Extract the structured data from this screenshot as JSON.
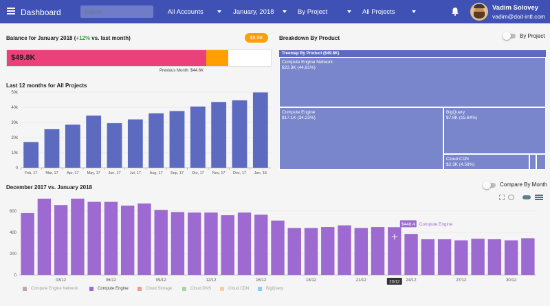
{
  "header": {
    "title": "Dashboard",
    "search_placeholder": "Search",
    "filters": [
      {
        "label": "All Accounts"
      },
      {
        "label": "January, 2018"
      },
      {
        "label": "By Project"
      },
      {
        "label": "All Projects"
      }
    ],
    "user": {
      "name": "Vadim Solovey",
      "email": "vadim@doit-intl.com"
    }
  },
  "balance": {
    "title_prefix": "Balance for January 2018 (",
    "change": "+12%",
    "title_suffix": " vs. last month)",
    "badge": "$5.6K",
    "value": "$49.8K",
    "previous": "Previous Month: $44.6K",
    "current_fraction": 0.754,
    "extra_fraction": 0.085
  },
  "breakdown": {
    "title": "Breakdown By Product",
    "toggle_label": "By Project",
    "treemap_title": "Treemap By Product ($49.8K)",
    "cells": [
      {
        "name": "Compute Engine Network",
        "value": "$22.3K (44.81%)"
      },
      {
        "name": "Compute Engine",
        "value": "$17.1K (34.23%)"
      },
      {
        "name": "BigQuery",
        "value": "$7.8K (15.64%)"
      },
      {
        "name": "Cloud CDN",
        "value": "$2.3K (4.58%)"
      }
    ]
  },
  "chart_data": [
    {
      "type": "bar",
      "title": "Last 12 months for All Projects",
      "categories": [
        "Feb, 17",
        "Mar, 17",
        "Apr, 17",
        "May, 17",
        "Jun, 17",
        "Jul, 17",
        "Aug, 17",
        "Sep, 17",
        "Oct, 17",
        "Nov, 17",
        "Dec, 17",
        "Jan, 18"
      ],
      "values": [
        17,
        25.5,
        28.5,
        34.5,
        29.5,
        32,
        36,
        37.5,
        40.5,
        43.5,
        44.6,
        49.8
      ],
      "y_ticks": [
        "0",
        "10k",
        "20k",
        "30k",
        "40k",
        "50k"
      ],
      "ylim": [
        0,
        50
      ],
      "color": "#5c6bc0",
      "grid": true
    },
    {
      "type": "bar",
      "title": "December 2017 vs. January 2018",
      "toggle_label": "Compare By Month",
      "values": [
        580,
        715,
        655,
        715,
        685,
        685,
        650,
        670,
        610,
        590,
        585,
        585,
        560,
        585,
        565,
        510,
        440,
        440,
        450,
        465,
        440,
        450,
        448.4,
        385,
        335,
        335,
        325,
        340,
        335,
        325,
        345
      ],
      "x_ticks": [
        {
          "index": 2,
          "label": "03/12"
        },
        {
          "index": 5,
          "label": "06/12"
        },
        {
          "index": 8,
          "label": "09/12"
        },
        {
          "index": 11,
          "label": "12/12"
        },
        {
          "index": 14,
          "label": "15/12"
        },
        {
          "index": 17,
          "label": "18/12"
        },
        {
          "index": 20,
          "label": "21/12"
        },
        {
          "index": 22,
          "label": "23/12"
        },
        {
          "index": 23,
          "label": "24/12"
        },
        {
          "index": 26,
          "label": "27/12"
        },
        {
          "index": 29,
          "label": "30/12"
        }
      ],
      "y_ticks": [
        "0",
        "200",
        "400",
        "600"
      ],
      "ylim": [
        0,
        740
      ],
      "color": "#9c6ad0",
      "highlight_index": 22,
      "tooltip": {
        "value": "$448.4",
        "series": "Compute Engine"
      },
      "legend": [
        {
          "name": "Compute Engine Network",
          "color": "#c2a9a0",
          "active": false
        },
        {
          "name": "Compute Engine",
          "color": "#9c6ad0",
          "active": true
        },
        {
          "name": "Cloud Storage",
          "color": "#ef9a9a",
          "active": false
        },
        {
          "name": "Cloud DNS",
          "color": "#a5d6a7",
          "active": false
        },
        {
          "name": "Cloud CDN",
          "color": "#ffcc99",
          "active": false
        },
        {
          "name": "BigQuery",
          "color": "#90caf9",
          "active": false
        }
      ],
      "grid": true
    }
  ]
}
